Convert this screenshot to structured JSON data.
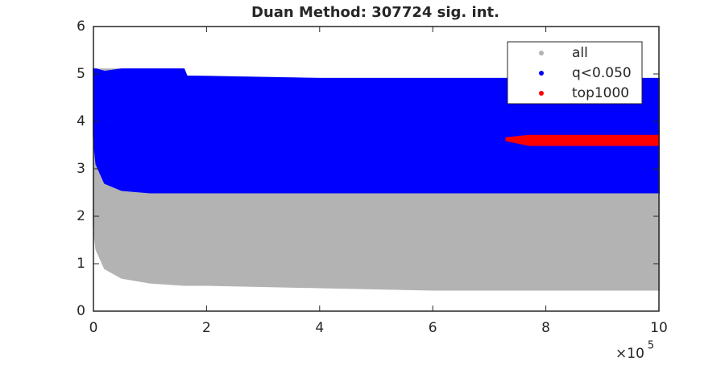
{
  "chart_data": {
    "type": "scatter",
    "title": "Duan Method: 307724 sig. int.",
    "xlim": [
      0,
      1000000
    ],
    "xticks": [
      {
        "value": 0,
        "label": "0"
      },
      {
        "value": 200000,
        "label": "2"
      },
      {
        "value": 400000,
        "label": "4"
      },
      {
        "value": 600000,
        "label": "6"
      },
      {
        "value": 800000,
        "label": "8"
      },
      {
        "value": 1000000,
        "label": "10"
      }
    ],
    "x_multiplier": "×10",
    "x_multiplier_exponent": "5",
    "ylim": [
      0,
      6
    ],
    "yticks": [
      0,
      1,
      2,
      3,
      4,
      5,
      6
    ],
    "legend": "top-right",
    "series": [
      {
        "name": "all",
        "color": "#b3b3b3",
        "x": [
          0,
          5000,
          20000,
          50000,
          100000,
          160000,
          165000,
          200000,
          400000,
          600000,
          800000,
          1000000
        ],
        "upper": [
          5.1,
          5.1,
          5.1,
          5.1,
          5.1,
          5.1,
          4.95,
          4.95,
          4.9,
          4.9,
          4.9,
          4.9
        ],
        "lower": [
          1.8,
          1.3,
          0.9,
          0.7,
          0.6,
          0.55,
          0.55,
          0.55,
          0.5,
          0.45,
          0.45,
          0.45
        ]
      },
      {
        "name": "q<0.050",
        "color": "#0000ff",
        "x": [
          0,
          5000,
          20000,
          50000,
          100000,
          160000,
          165000,
          400000,
          1000000
        ],
        "upper": [
          5.1,
          5.1,
          5.05,
          5.1,
          5.1,
          5.1,
          4.95,
          4.9,
          4.9
        ],
        "lower": [
          3.7,
          3.1,
          2.7,
          2.55,
          2.5,
          2.5,
          2.5,
          2.5,
          2.5
        ]
      },
      {
        "name": "top1000",
        "color": "#ff0000",
        "x": [
          730000,
          770000,
          1000000
        ],
        "upper": [
          3.65,
          3.7,
          3.7
        ],
        "lower": [
          3.6,
          3.5,
          3.5
        ]
      }
    ]
  }
}
